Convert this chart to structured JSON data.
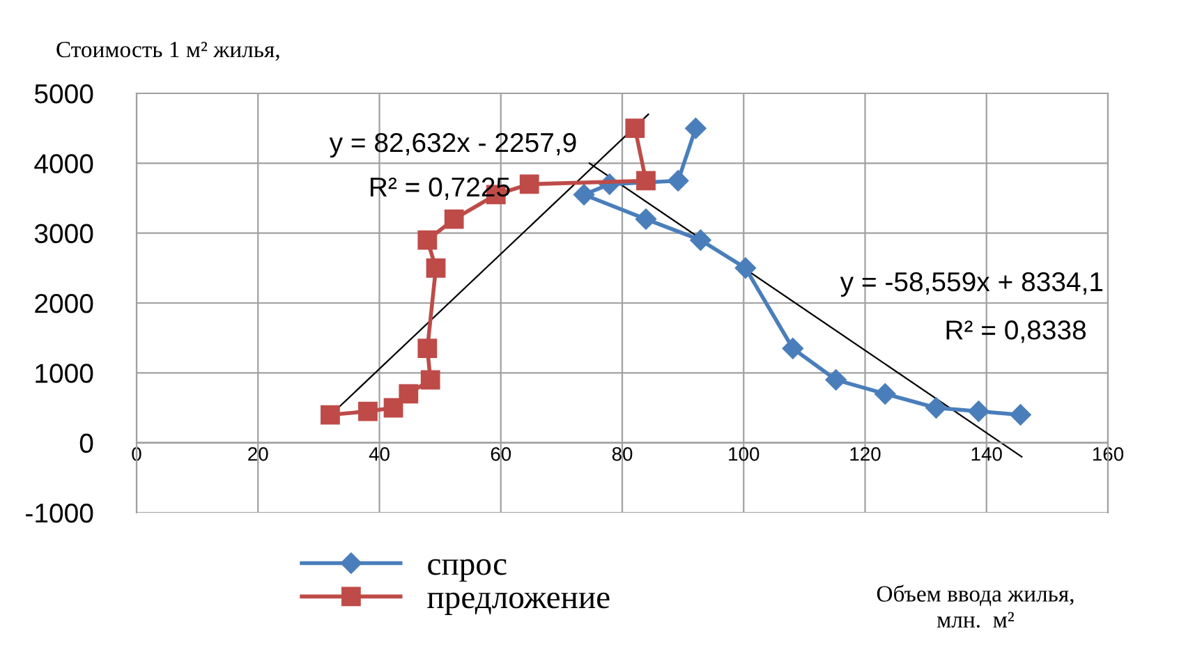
{
  "chart_data": {
    "type": "line",
    "ylabel": "Стоимость 1 м² жилья,",
    "xlabel": "Объем ввода жилья,\nмлн.  м²",
    "xlim": [
      0,
      160
    ],
    "xticks": [
      0,
      20,
      40,
      60,
      80,
      100,
      120,
      140,
      160
    ],
    "ylim": [
      -1000,
      5000
    ],
    "yticks": [
      -1000,
      0,
      1000,
      2000,
      3000,
      4000,
      5000
    ],
    "grid": true,
    "legend": "bottom left",
    "series": [
      {
        "name": "спрос",
        "color": "#4a7ebb",
        "marker": "diamond",
        "x": [
          92.1,
          89.2,
          77.9,
          73.7,
          83.9,
          92.9,
          100.3,
          108.1,
          115.2,
          123.3,
          131.7,
          138.7,
          145.6
        ],
        "values": [
          4500,
          3750,
          3700,
          3550,
          3200,
          2900,
          2500,
          1350,
          900,
          700,
          500,
          450,
          400
        ]
      },
      {
        "name": "предложение",
        "color": "#be4b48",
        "marker": "square",
        "x": [
          31.9,
          38.1,
          42.3,
          44.8,
          48.4,
          47.9,
          49.3,
          47.9,
          52.3,
          59.2,
          64.7,
          83.9,
          82.1
        ],
        "values": [
          400,
          450,
          500,
          700,
          900,
          1350,
          2500,
          2900,
          3200,
          3550,
          3700,
          3750,
          4500
        ]
      },
      {
        "color": "#000000",
        "marker": "none",
        "x": [
          32,
          84.3
        ],
        "values": [
          400,
          4700
        ]
      },
      {
        "color": "#000000",
        "marker": "none",
        "x": [
          74.6,
          145.8
        ],
        "values": [
          4000,
          -200
        ]
      }
    ],
    "annotations": [
      "y = 82,632x - 2257,9",
      "R² = 0,7225",
      "y = -58,559x + 8334,1",
      "R² = 0,8338"
    ]
  }
}
